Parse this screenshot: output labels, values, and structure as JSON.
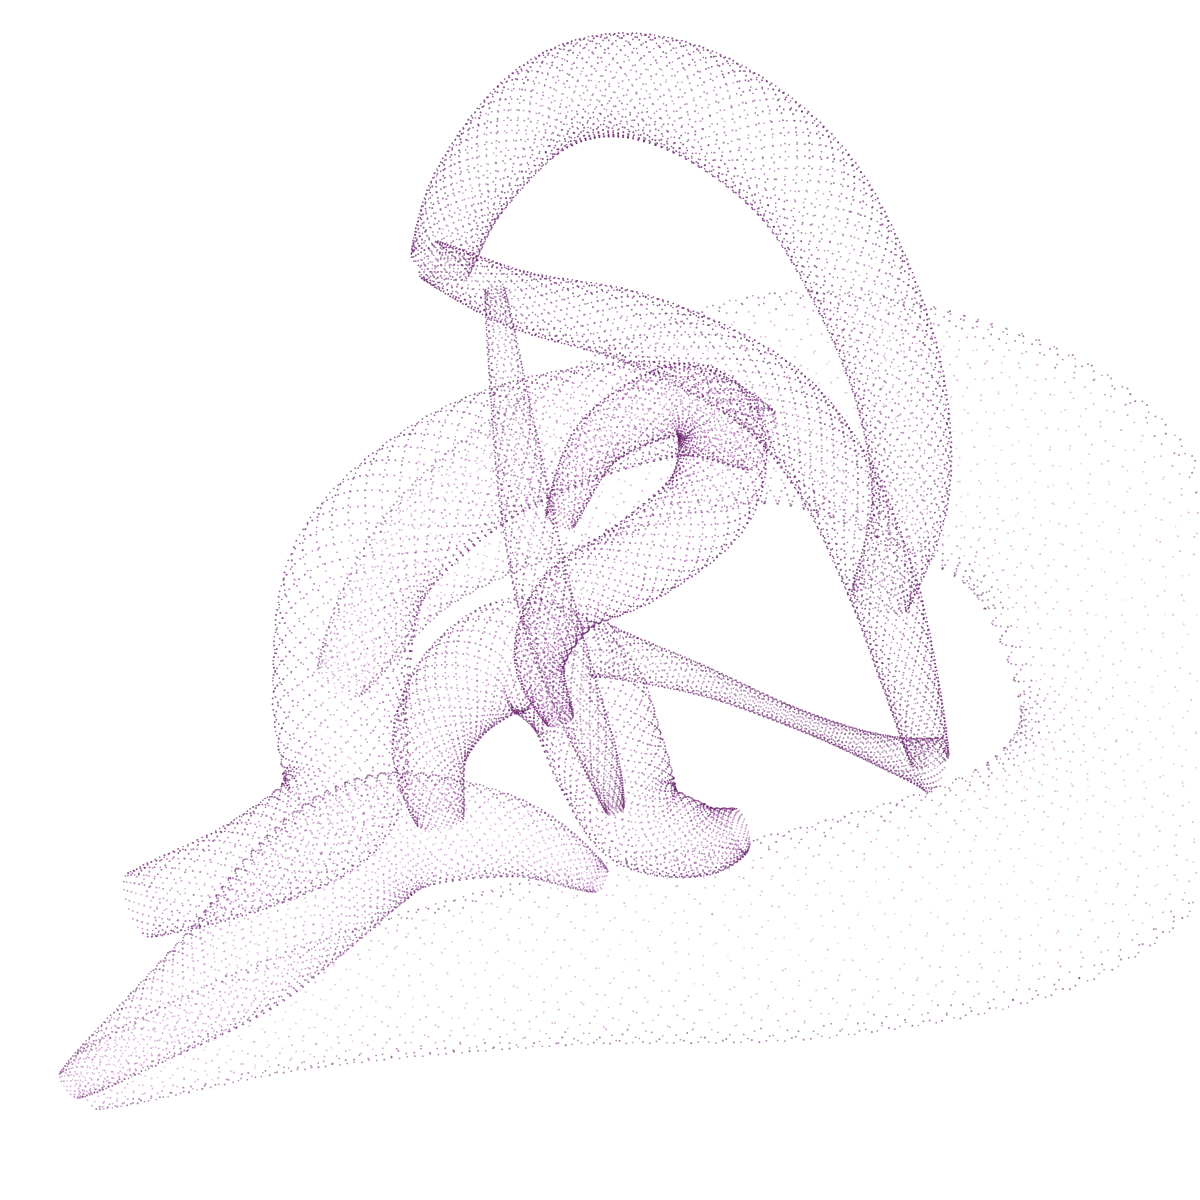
{
  "artwork": {
    "subject": "stipple-ribbon-knot",
    "background_color": "#ffffff",
    "ink_colors": [
      "#5a1d5e",
      "#7a2a7e",
      "#9b3ea0",
      "#b85ab8",
      "#c06cb8"
    ]
  }
}
